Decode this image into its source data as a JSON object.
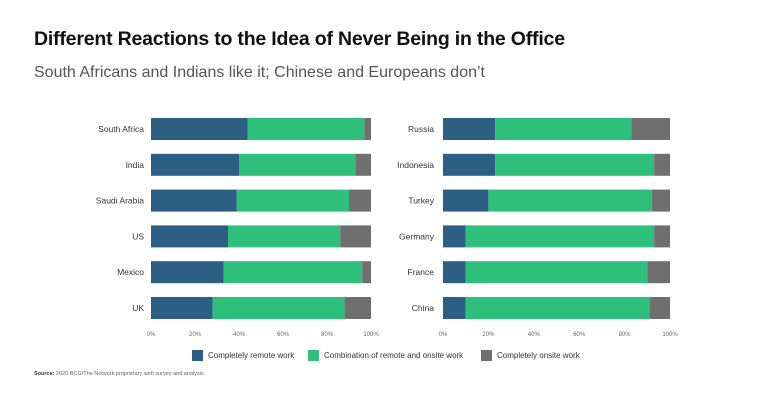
{
  "header": {
    "title": "Different Reactions to the Idea of Never Being in the Office",
    "subtitle": "South Africans and Indians like it; Chinese and Europeans don’t"
  },
  "source": {
    "label": "Source:",
    "text": "2020 BCG/The Network proprietary web survey and analysis."
  },
  "colors": {
    "remote": "#2d5f84",
    "combination": "#2ebf7a",
    "onsite": "#6f6f6f"
  },
  "chart_data": [
    {
      "type": "bar",
      "orientation": "horizontal-stacked",
      "categories": [
        "South Africa",
        "India",
        "Saudi Arabia",
        "US",
        "Mexico",
        "UK"
      ],
      "series": [
        {
          "name": "Completely remote work",
          "values": [
            44,
            40,
            39,
            35,
            33,
            28
          ]
        },
        {
          "name": "Combination of remote and onsite work",
          "values": [
            53,
            53,
            51,
            51,
            63,
            60
          ]
        },
        {
          "name": "Completely onsite work",
          "values": [
            3,
            7,
            10,
            14,
            4,
            12
          ]
        }
      ],
      "xlim": [
        0,
        100
      ],
      "ticks": [
        "0%",
        "20%",
        "40%",
        "60%",
        "80%",
        "100%"
      ]
    },
    {
      "type": "bar",
      "orientation": "horizontal-stacked",
      "categories": [
        "Russia",
        "Indonesia",
        "Turkey",
        "Germany",
        "France",
        "China"
      ],
      "series": [
        {
          "name": "Completely remote work",
          "values": [
            23,
            23,
            20,
            10,
            10,
            10
          ]
        },
        {
          "name": "Combination of remote and onsite work",
          "values": [
            60,
            70,
            72,
            83,
            80,
            81
          ]
        },
        {
          "name": "Completely onsite work",
          "values": [
            17,
            7,
            8,
            7,
            10,
            9
          ]
        }
      ],
      "xlim": [
        0,
        100
      ],
      "ticks": [
        "0%",
        "20%",
        "40%",
        "60%",
        "80%",
        "100%"
      ]
    }
  ],
  "legend": [
    {
      "label": "Completely remote work",
      "color": "#2d5f84"
    },
    {
      "label": "Combination of remote and onsite work",
      "color": "#2ebf7a"
    },
    {
      "label": "Completely onsite work",
      "color": "#6f6f6f"
    }
  ]
}
